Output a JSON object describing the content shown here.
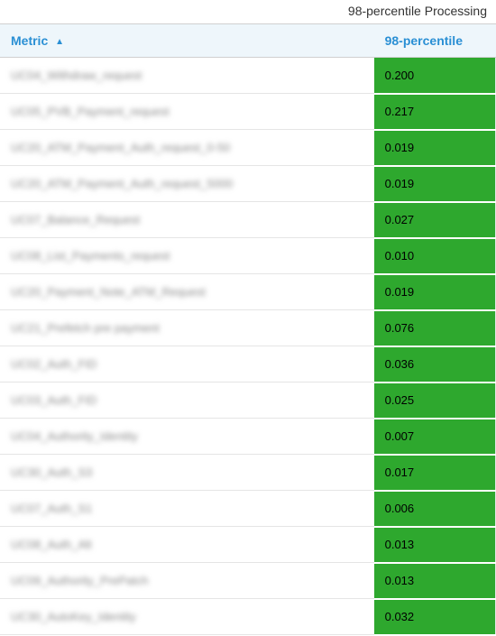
{
  "title": "98-percentile Processing",
  "columns": {
    "metric": "Metric",
    "percentile": "98-percentile"
  },
  "sort_indicator": "▲",
  "colors": {
    "header_bg": "#eef6fb",
    "header_text": "#2a8fd4",
    "value_bg": "#2ea82e",
    "value_text": "#000000",
    "border": "#e5e5e5",
    "title_text": "#333333"
  },
  "rows": [
    {
      "metric": "UC04_Withdraw_request",
      "value": "0.200"
    },
    {
      "metric": "UC05_PVB_Payment_request",
      "value": "0.217"
    },
    {
      "metric": "UC20_ATM_Payment_Auth_request_0-50",
      "value": "0.019"
    },
    {
      "metric": "UC20_ATM_Payment_Auth_request_5000",
      "value": "0.019"
    },
    {
      "metric": "UC07_Balance_Request",
      "value": "0.027"
    },
    {
      "metric": "UC08_List_Payments_request",
      "value": "0.010"
    },
    {
      "metric": "UC20_Payment_Note_ATM_Request",
      "value": "0.019"
    },
    {
      "metric": "UC21_Prefetch pre payment",
      "value": "0.076"
    },
    {
      "metric": "UC02_Auth_FID",
      "value": "0.036"
    },
    {
      "metric": "UC03_Auth_FID",
      "value": "0.025"
    },
    {
      "metric": "UC04_Authority_Identity",
      "value": "0.007"
    },
    {
      "metric": "UC30_Auth_S3",
      "value": "0.017"
    },
    {
      "metric": "UC07_Auth_S1",
      "value": "0.006"
    },
    {
      "metric": "UC08_Auth_Alt",
      "value": "0.013"
    },
    {
      "metric": "UC09_Authority_PrePatch",
      "value": "0.013"
    },
    {
      "metric": "UC30_AutoKey_Identity",
      "value": "0.032"
    }
  ]
}
